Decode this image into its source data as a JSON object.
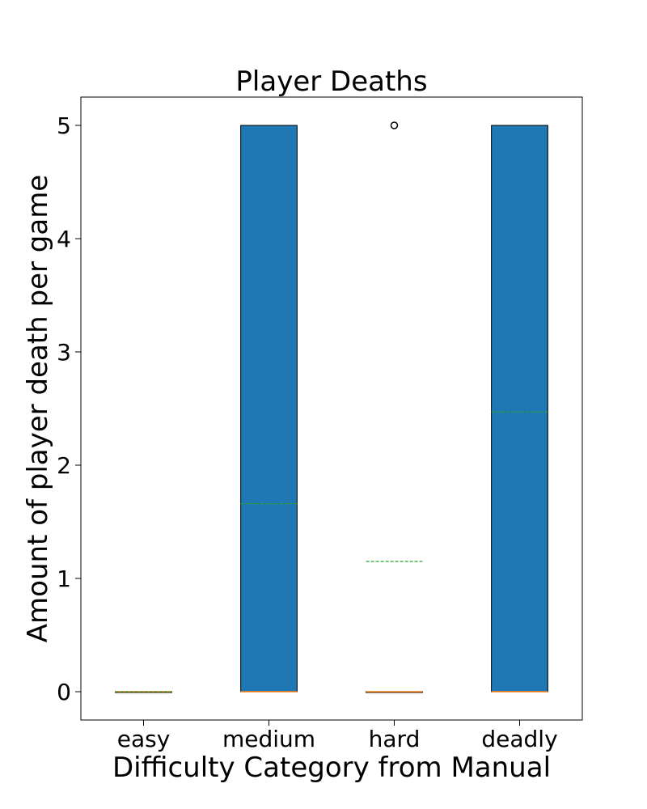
{
  "chart_data": {
    "type": "box",
    "title": "Player Deaths",
    "xlabel": "Difficulty Category from Manual",
    "ylabel": "Amount of player death per game",
    "ylim": [
      -0.25,
      5.25
    ],
    "yticks": [
      0,
      1,
      2,
      3,
      4,
      5
    ],
    "categories": [
      "easy",
      "medium",
      "hard",
      "deadly"
    ],
    "boxes": [
      {
        "category": "easy",
        "q1": 0,
        "median": 0,
        "q3": 0,
        "whisker_low": 0,
        "whisker_high": 0,
        "mean": 0,
        "outliers": []
      },
      {
        "category": "medium",
        "q1": 0,
        "median": 0,
        "q3": 5,
        "whisker_low": 0,
        "whisker_high": 5,
        "mean": 1.66,
        "outliers": []
      },
      {
        "category": "hard",
        "q1": 0,
        "median": 0,
        "q3": 0,
        "whisker_low": 0,
        "whisker_high": 0,
        "mean": 1.15,
        "outliers": [
          5
        ]
      },
      {
        "category": "deadly",
        "q1": 0,
        "median": 0,
        "q3": 5,
        "whisker_low": 0,
        "whisker_high": 5,
        "mean": 2.47,
        "outliers": []
      }
    ],
    "colors": {
      "box_fill": "#1f77b4",
      "median": "#ff7f0e",
      "mean": "#2ca02c",
      "edge": "#000000"
    },
    "grid": false,
    "mean_line": "dashed"
  }
}
